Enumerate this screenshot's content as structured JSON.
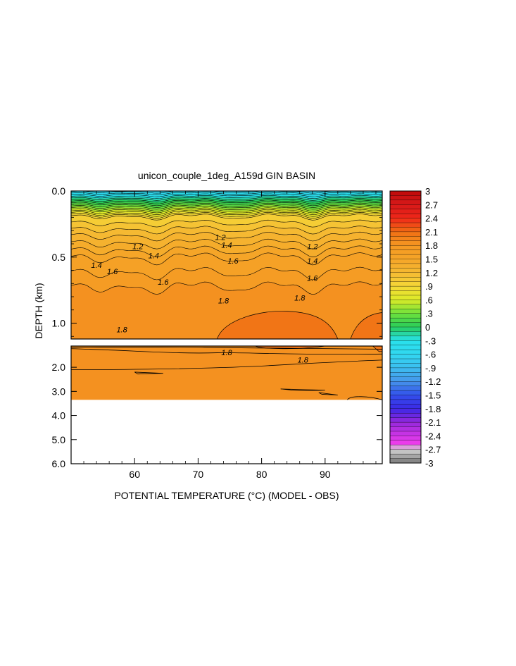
{
  "chart_data": {
    "type": "heatmap",
    "title": "unicon_couple_1deg_A159d GIN BASIN",
    "xlabel": "POTENTIAL TEMPERATURE (°C) (MODEL - OBS)",
    "ylabel": "DEPTH (km)",
    "xlim": [
      50,
      99
    ],
    "x_ticks": [
      60,
      70,
      80,
      90
    ],
    "upper_panel": {
      "ylim": [
        0.0,
        1.12
      ],
      "y_ticks": [
        "0.0",
        "0.5",
        "1.0"
      ],
      "y_tick_values": [
        0.0,
        0.5,
        1.0
      ],
      "contour_labels": [
        {
          "text": "1.2",
          "x": 60.5,
          "y": 0.44
        },
        {
          "text": "1.4",
          "x": 54,
          "y": 0.58
        },
        {
          "text": "1.6",
          "x": 56.5,
          "y": 0.63
        },
        {
          "text": "1.4",
          "x": 63,
          "y": 0.51
        },
        {
          "text": "1.6",
          "x": 64.5,
          "y": 0.71
        },
        {
          "text": "1.2",
          "x": 73.5,
          "y": 0.37
        },
        {
          "text": "1.4",
          "x": 74.5,
          "y": 0.43
        },
        {
          "text": "1.6",
          "x": 75.5,
          "y": 0.55
        },
        {
          "text": "1.8",
          "x": 74,
          "y": 0.85
        },
        {
          "text": "1.2",
          "x": 88,
          "y": 0.44
        },
        {
          "text": "1.4",
          "x": 88,
          "y": 0.55
        },
        {
          "text": "1.6",
          "x": 88,
          "y": 0.68
        },
        {
          "text": "1.8",
          "x": 86,
          "y": 0.83
        },
        {
          "text": "1.8",
          "x": 58,
          "y": 1.07
        }
      ]
    },
    "lower_panel": {
      "ylim": [
        1.12,
        6.0
      ],
      "y_ticks": [
        "2.0",
        "3.0",
        "4.0",
        "5.0",
        "6.0"
      ],
      "y_tick_values": [
        2.0,
        3.0,
        4.0,
        5.0,
        6.0
      ],
      "data_bottom_depth": 3.35,
      "contour_labels": [
        {
          "text": "1.8",
          "x": 74.5,
          "y": 1.5
        },
        {
          "text": "1.8",
          "x": 86.5,
          "y": 1.8
        }
      ]
    },
    "colorbar": {
      "labels": [
        "3",
        "2.7",
        "2.4",
        "2.1",
        "1.8",
        "1.5",
        "1.2",
        ".9",
        ".6",
        ".3",
        "0",
        "-.3",
        "-.6",
        "-.9",
        "-1.2",
        "-1.5",
        "-1.8",
        "-2.1",
        "-2.4",
        "-2.7",
        "-3"
      ],
      "min": -3,
      "max": 3,
      "step": 0.1
    },
    "colors": {
      "orange_main": "#f59a22",
      "orange_deep": "#ee6a12",
      "yellow": "#f5d236",
      "green": "#2fd15a",
      "cyan": "#28e0ee"
    }
  }
}
